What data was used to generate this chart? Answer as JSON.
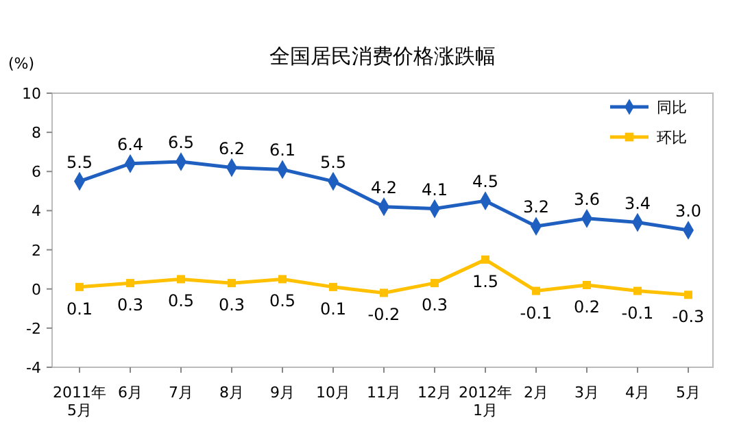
{
  "chart_data": {
    "type": "line",
    "title": "全国居民消费价格涨跌幅",
    "ylabel": "(%)",
    "categories": [
      "2011年\n5月",
      "6月",
      "7月",
      "8月",
      "9月",
      "10月",
      "11月",
      "12月",
      "2012年\n1月",
      "2月",
      "3月",
      "4月",
      "5月"
    ],
    "series": [
      {
        "name": "同比",
        "color": "#1f5fbf",
        "marker": "diamond",
        "values": [
          5.5,
          6.4,
          6.5,
          6.2,
          6.1,
          5.5,
          4.2,
          4.1,
          4.5,
          3.2,
          3.6,
          3.4,
          3.0
        ],
        "value_labels": [
          "5.5",
          "6.4",
          "6.5",
          "6.2",
          "6.1",
          "5.5",
          "4.2",
          "4.1",
          "4.5",
          "3.2",
          "3.6",
          "3.4",
          "3.0"
        ]
      },
      {
        "name": "环比",
        "color": "#ffc000",
        "marker": "square",
        "values": [
          0.1,
          0.3,
          0.5,
          0.3,
          0.5,
          0.1,
          -0.2,
          0.3,
          1.5,
          -0.1,
          0.2,
          -0.1,
          -0.3
        ],
        "value_labels": [
          "0.1",
          "0.3",
          "0.5",
          "0.3",
          "0.5",
          "0.1",
          "-0.2",
          "0.3",
          "1.5",
          "-0.1",
          "0.2",
          "-0.1",
          "-0.3"
        ]
      }
    ],
    "ylim": [
      -4,
      10
    ],
    "yticks": [
      -4,
      -2,
      0,
      2,
      4,
      6,
      8,
      10
    ],
    "grid": false,
    "legend": "top right"
  }
}
